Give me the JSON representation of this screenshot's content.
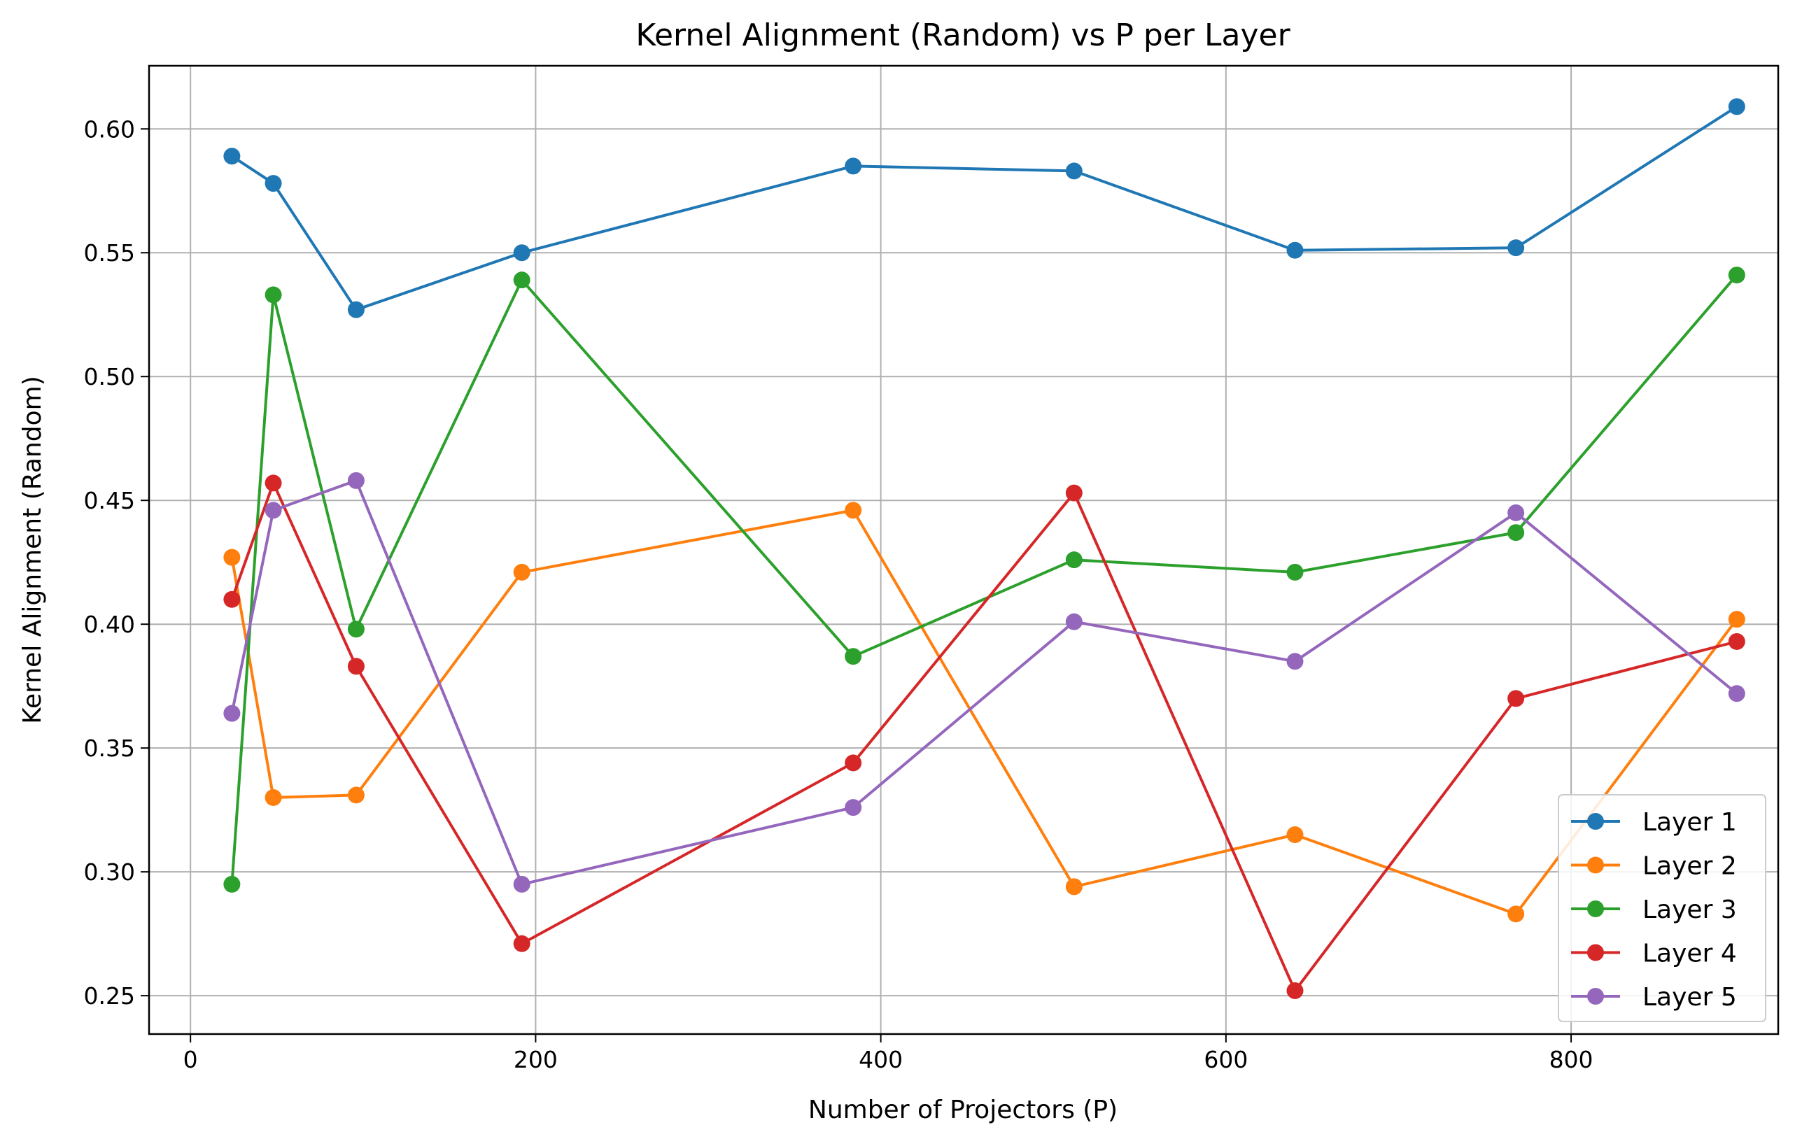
{
  "chart_data": {
    "type": "line",
    "title": "Kernel Alignment (Random) vs P per Layer",
    "xlabel": "Number of Projectors (P)",
    "ylabel": "Kernel Alignment (Random)",
    "xlim": [
      -24,
      920
    ],
    "ylim": [
      0.2345,
      0.6255
    ],
    "xticks": [
      0,
      200,
      400,
      600,
      800
    ],
    "xtick_labels": [
      "0",
      "200",
      "400",
      "600",
      "800"
    ],
    "yticks": [
      0.25,
      0.3,
      0.35,
      0.4,
      0.45,
      0.5,
      0.55,
      0.6
    ],
    "ytick_labels": [
      "0.25",
      "0.30",
      "0.35",
      "0.40",
      "0.45",
      "0.50",
      "0.55",
      "0.60"
    ],
    "grid": true,
    "legend_position": "bottom-right",
    "x": [
      24,
      48,
      96,
      192,
      384,
      512,
      640,
      768,
      896
    ],
    "series": [
      {
        "name": "Layer 1",
        "color": "#1f77b4",
        "values": [
          0.589,
          0.578,
          0.527,
          0.55,
          0.585,
          0.583,
          0.551,
          0.552,
          0.609
        ]
      },
      {
        "name": "Layer 2",
        "color": "#ff7f0e",
        "values": [
          0.427,
          0.33,
          0.331,
          0.421,
          0.446,
          0.294,
          0.315,
          0.283,
          0.402
        ]
      },
      {
        "name": "Layer 3",
        "color": "#2ca02c",
        "values": [
          0.295,
          0.533,
          0.398,
          0.539,
          0.387,
          0.426,
          0.421,
          0.437,
          0.541
        ]
      },
      {
        "name": "Layer 4",
        "color": "#d62728",
        "values": [
          0.41,
          0.457,
          0.383,
          0.271,
          0.344,
          0.453,
          0.252,
          0.37,
          0.393
        ]
      },
      {
        "name": "Layer 5",
        "color": "#9467bd",
        "values": [
          0.364,
          0.446,
          0.458,
          0.295,
          0.326,
          0.401,
          0.385,
          0.445,
          0.372
        ]
      }
    ]
  }
}
